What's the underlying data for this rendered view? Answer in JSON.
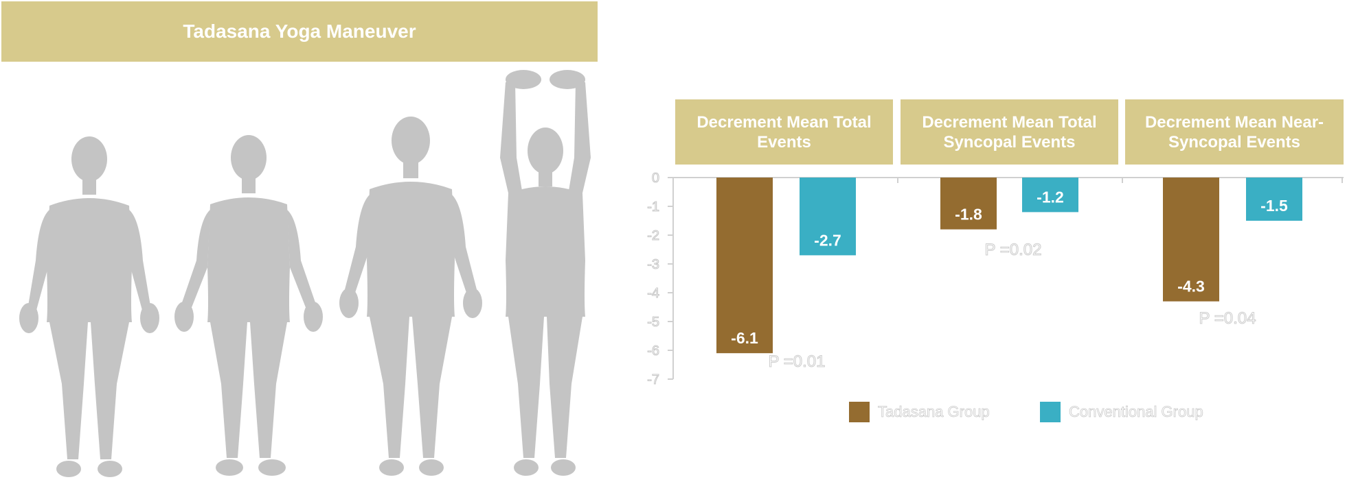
{
  "banner": {
    "title": "Tadasana Yoga Maneuver"
  },
  "figures": {
    "icon": "human-silhouette-icon",
    "color": "#c4c4c4",
    "poses": [
      "standing-front",
      "standing-back",
      "standing-front-2",
      "arms-raised-overhead"
    ]
  },
  "chart_data": {
    "type": "bar",
    "ylim": [
      -7,
      0
    ],
    "yticks": [
      "0",
      "-1",
      "-2",
      "-3",
      "-4",
      "-5",
      "-6",
      "-7"
    ],
    "grid": false,
    "legend_position": "bottom",
    "series_colors": [
      "#946c30",
      "#3aafc4"
    ],
    "series": [
      {
        "name": "Tadasana Group",
        "values": [
          -6.1,
          -1.8,
          -4.3
        ]
      },
      {
        "name": "Conventional Group",
        "values": [
          -2.7,
          -1.2,
          -1.5
        ]
      }
    ],
    "panels": [
      {
        "title": "Decrement Mean Total Events",
        "labels": [
          "-6.1",
          "-2.7"
        ],
        "p_value": "P =0.01"
      },
      {
        "title": "Decrement Mean Total Syncopal Events",
        "labels": [
          "-1.8",
          "-1.2"
        ],
        "p_value": "P =0.02"
      },
      {
        "title": "Decrement Mean Near-Syncopal Events",
        "labels": [
          "-4.3",
          "-1.5"
        ],
        "p_value": "P =0.04"
      }
    ]
  }
}
